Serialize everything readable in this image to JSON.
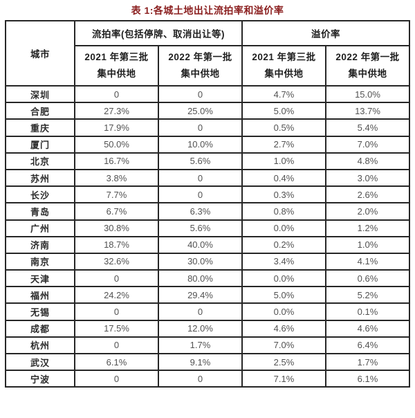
{
  "page": {
    "title": "表 1:各城土地出让流拍率和溢价率"
  },
  "table": {
    "city_header": "城市",
    "group_headers": {
      "failure_rate": "流拍率(包括停牌、取消出让等)",
      "premium_rate": "溢价率"
    },
    "sub_headers": [
      {
        "line1": "2021 年第三批",
        "line2": "集中供地"
      },
      {
        "line1": "2022 年第一批",
        "line2": "集中供地"
      },
      {
        "line1": "2021 年第三批",
        "line2": "集中供地"
      },
      {
        "line1": "2022 年第一批",
        "line2": "集中供地"
      }
    ],
    "rows": [
      {
        "city": "深圳",
        "values": [
          "0",
          "0",
          "4.7%",
          "15.0%"
        ]
      },
      {
        "city": "合肥",
        "values": [
          "27.3%",
          "25.0%",
          "5.0%",
          "13.7%"
        ]
      },
      {
        "city": "重庆",
        "values": [
          "17.9%",
          "0",
          "0.5%",
          "5.4%"
        ]
      },
      {
        "city": "厦门",
        "values": [
          "50.0%",
          "10.0%",
          "2.7%",
          "7.0%"
        ]
      },
      {
        "city": "北京",
        "values": [
          "16.7%",
          "5.6%",
          "1.0%",
          "4.8%"
        ]
      },
      {
        "city": "苏州",
        "values": [
          "3.8%",
          "0",
          "0.4%",
          "3.0%"
        ]
      },
      {
        "city": "长沙",
        "values": [
          "7.7%",
          "0",
          "0.3%",
          "2.6%"
        ]
      },
      {
        "city": "青岛",
        "values": [
          "6.7%",
          "6.3%",
          "0.8%",
          "2.0%"
        ]
      },
      {
        "city": "广州",
        "values": [
          "30.8%",
          "5.6%",
          "0.0%",
          "1.2%"
        ]
      },
      {
        "city": "济南",
        "values": [
          "18.7%",
          "40.0%",
          "0.2%",
          "1.0%"
        ]
      },
      {
        "city": "南京",
        "values": [
          "32.6%",
          "30.0%",
          "3.4%",
          "4.1%"
        ]
      },
      {
        "city": "天津",
        "values": [
          "0",
          "80.0%",
          "0.0%",
          "0.6%"
        ]
      },
      {
        "city": "福州",
        "values": [
          "24.2%",
          "29.4%",
          "5.0%",
          "5.2%"
        ]
      },
      {
        "city": "无锡",
        "values": [
          "0",
          "0",
          "0.0%",
          "0.1%"
        ]
      },
      {
        "city": "成都",
        "values": [
          "17.5%",
          "12.0%",
          "4.6%",
          "4.6%"
        ]
      },
      {
        "city": "杭州",
        "values": [
          "0",
          "1.7%",
          "7.0%",
          "6.4%"
        ]
      },
      {
        "city": "武汉",
        "values": [
          "6.1%",
          "9.1%",
          "2.5%",
          "1.7%"
        ]
      },
      {
        "city": "宁波",
        "values": [
          "0",
          "0",
          "7.1%",
          "6.1%"
        ]
      }
    ]
  },
  "colors": {
    "title": "#8b1f1f",
    "header_text": "#1f1f1f",
    "city_text": "#2b2b2b",
    "value_text": "#525252",
    "border": "#262626"
  }
}
